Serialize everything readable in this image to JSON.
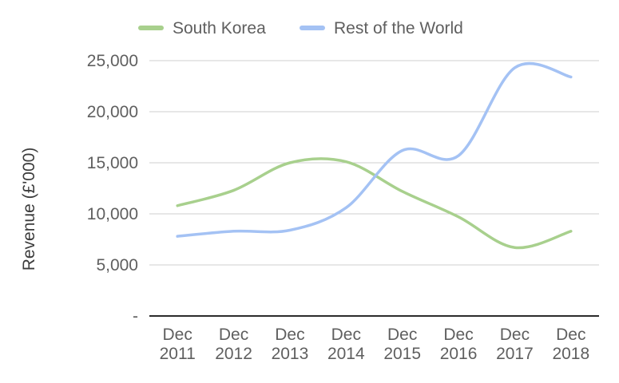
{
  "chart_data": {
    "type": "line",
    "title": "",
    "xlabel": "",
    "ylabel": "Revenue (£'000)",
    "categories": [
      [
        "Dec",
        "2011"
      ],
      [
        "Dec",
        "2012"
      ],
      [
        "Dec",
        "2013"
      ],
      [
        "Dec",
        "2014"
      ],
      [
        "Dec",
        "2015"
      ],
      [
        "Dec",
        "2016"
      ],
      [
        "Dec",
        "2017"
      ],
      [
        "Dec",
        "2018"
      ]
    ],
    "yticks": [
      {
        "value": 0,
        "label": "-"
      },
      {
        "value": 5000,
        "label": "5,000"
      },
      {
        "value": 10000,
        "label": "10,000"
      },
      {
        "value": 15000,
        "label": "15,000"
      },
      {
        "value": 20000,
        "label": "20,000"
      },
      {
        "value": 25000,
        "label": "25,000"
      }
    ],
    "ylim": [
      0,
      25000
    ],
    "grid": true,
    "legend_position": "top",
    "series": [
      {
        "name": "South Korea",
        "color": "#a8d08d",
        "values": [
          10800,
          12300,
          15000,
          15100,
          12200,
          9700,
          6700,
          8300
        ]
      },
      {
        "name": "Rest of the World",
        "color": "#a4c2f4",
        "values": [
          7800,
          8300,
          8400,
          10600,
          16200,
          15700,
          24300,
          23400
        ]
      }
    ]
  }
}
